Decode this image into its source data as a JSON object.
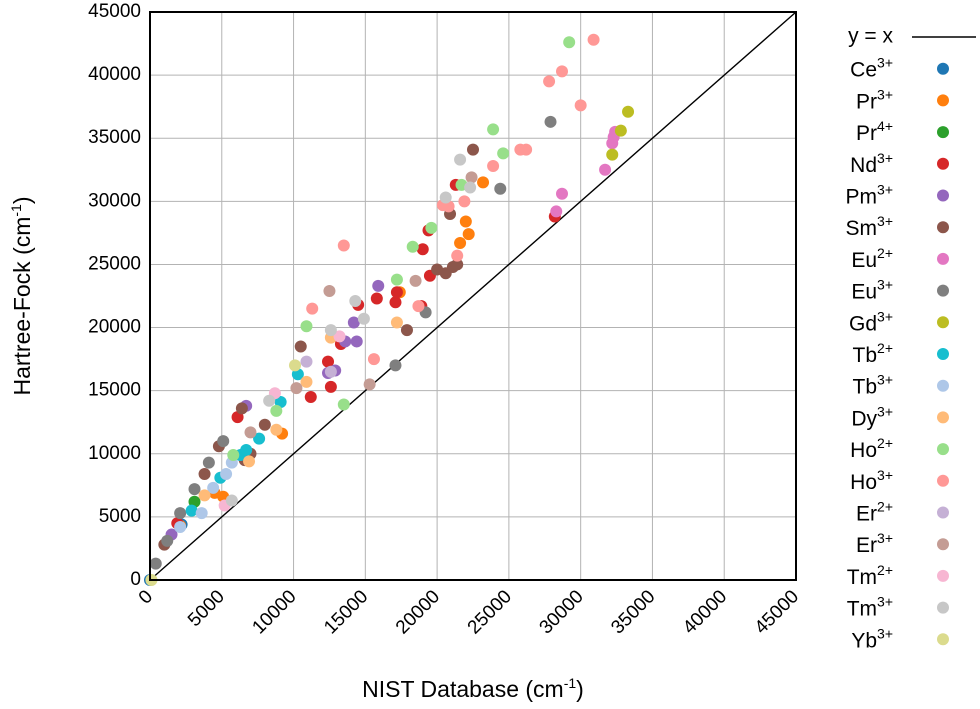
{
  "chart_data": {
    "type": "scatter",
    "xlabel": {
      "base": "NIST Database (cm",
      "sup": "-1",
      "close": ")"
    },
    "ylabel": {
      "base": "Hartree-Fock (cm",
      "sup": "-1",
      "close": ")"
    },
    "xlim": [
      0,
      45000
    ],
    "ylim": [
      0,
      45000
    ],
    "x_ticks": [
      0,
      5000,
      10000,
      15000,
      20000,
      25000,
      30000,
      35000,
      40000,
      45000
    ],
    "y_ticks": [
      0,
      5000,
      10000,
      15000,
      20000,
      25000,
      30000,
      35000,
      40000,
      45000
    ],
    "grid": true,
    "legend_position": "right",
    "reference_line": {
      "label": "y = x",
      "color": "#000000"
    },
    "series": [
      {
        "name": "Ce",
        "charge": "3+",
        "color": "#1f77b4",
        "points": [
          [
            0,
            0
          ],
          [
            2200,
            4400
          ]
        ]
      },
      {
        "name": "Pr",
        "charge": "3+",
        "color": "#ff7f0e",
        "points": [
          [
            2100,
            4300
          ],
          [
            4500,
            6900
          ],
          [
            5100,
            6600
          ],
          [
            9200,
            11600
          ],
          [
            17400,
            22800
          ],
          [
            21600,
            26700
          ],
          [
            22000,
            28400
          ],
          [
            22200,
            27400
          ],
          [
            23200,
            31500
          ]
        ]
      },
      {
        "name": "Pr",
        "charge": "4+",
        "color": "#2ca02c",
        "points": [
          [
            3100,
            6200
          ]
        ]
      },
      {
        "name": "Nd",
        "charge": "3+",
        "color": "#d62728",
        "points": [
          [
            1900,
            4500
          ],
          [
            6100,
            12900
          ],
          [
            11200,
            14500
          ],
          [
            12400,
            17300
          ],
          [
            12600,
            15300
          ],
          [
            13300,
            18700
          ],
          [
            14500,
            21800
          ],
          [
            15800,
            22300
          ],
          [
            17100,
            22000
          ],
          [
            17200,
            22800
          ],
          [
            18900,
            21700
          ],
          [
            19500,
            24100
          ],
          [
            19400,
            27700
          ],
          [
            19000,
            26200
          ],
          [
            21300,
            31300
          ],
          [
            28200,
            28800
          ]
        ]
      },
      {
        "name": "Pm",
        "charge": "3+",
        "color": "#9467bd",
        "points": [
          [
            1500,
            3600
          ],
          [
            6700,
            13800
          ],
          [
            12400,
            16400
          ],
          [
            12900,
            16600
          ],
          [
            13600,
            18900
          ],
          [
            14400,
            18900
          ],
          [
            14200,
            20400
          ],
          [
            15900,
            23300
          ]
        ]
      },
      {
        "name": "Sm",
        "charge": "3+",
        "color": "#8c564b",
        "points": [
          [
            1000,
            2800
          ],
          [
            3800,
            8400
          ],
          [
            4800,
            10600
          ],
          [
            6600,
            9500
          ],
          [
            7000,
            10000
          ],
          [
            6400,
            13600
          ],
          [
            8000,
            12300
          ],
          [
            10500,
            18500
          ],
          [
            17900,
            19800
          ],
          [
            20000,
            24600
          ],
          [
            20600,
            24300
          ],
          [
            21100,
            24800
          ],
          [
            21400,
            25000
          ],
          [
            20900,
            29000
          ],
          [
            22500,
            34100
          ]
        ]
      },
      {
        "name": "Eu",
        "charge": "2+",
        "color": "#e377c2",
        "points": [
          [
            28300,
            29200
          ],
          [
            28700,
            30600
          ],
          [
            31700,
            32500
          ],
          [
            32200,
            34600
          ],
          [
            32300,
            35100
          ],
          [
            32400,
            35500
          ]
        ]
      },
      {
        "name": "Eu",
        "charge": "3+",
        "color": "#7f7f7f",
        "points": [
          [
            400,
            1300
          ],
          [
            1200,
            3100
          ],
          [
            2100,
            5300
          ],
          [
            3100,
            7200
          ],
          [
            4100,
            9300
          ],
          [
            5100,
            11000
          ],
          [
            17100,
            17000
          ],
          [
            19200,
            21200
          ],
          [
            24400,
            31000
          ],
          [
            27900,
            36300
          ]
        ]
      },
      {
        "name": "Gd",
        "charge": "3+",
        "color": "#bcbd22",
        "points": [
          [
            32200,
            33700
          ],
          [
            32800,
            35600
          ],
          [
            33300,
            37100
          ]
        ]
      },
      {
        "name": "Tb",
        "charge": "2+",
        "color": "#17becf",
        "points": [
          [
            2900,
            5500
          ],
          [
            4900,
            8100
          ],
          [
            6300,
            9900
          ],
          [
            6700,
            10300
          ],
          [
            7600,
            11200
          ],
          [
            9100,
            14100
          ],
          [
            10300,
            16300
          ]
        ]
      },
      {
        "name": "Tb",
        "charge": "3+",
        "color": "#aec7e8",
        "points": [
          [
            2100,
            4200
          ],
          [
            3600,
            5300
          ],
          [
            4400,
            7300
          ],
          [
            5300,
            8400
          ],
          [
            5700,
            9300
          ]
        ]
      },
      {
        "name": "Dy",
        "charge": "3+",
        "color": "#ffbb78",
        "points": [
          [
            3800,
            6700
          ],
          [
            6900,
            9400
          ],
          [
            8800,
            11900
          ],
          [
            10900,
            15700
          ],
          [
            12600,
            19200
          ],
          [
            17200,
            20400
          ]
        ]
      },
      {
        "name": "Ho",
        "charge": "2+",
        "color": "#98df8a",
        "points": [
          [
            5800,
            9900
          ],
          [
            8800,
            13400
          ],
          [
            10900,
            20100
          ],
          [
            13500,
            13900
          ],
          [
            17200,
            23800
          ],
          [
            18300,
            26400
          ],
          [
            19600,
            27900
          ],
          [
            21700,
            31300
          ],
          [
            23900,
            35700
          ],
          [
            24600,
            33800
          ],
          [
            29200,
            42600
          ]
        ]
      },
      {
        "name": "Ho",
        "charge": "3+",
        "color": "#ff9896",
        "points": [
          [
            11300,
            21500
          ],
          [
            13500,
            26500
          ],
          [
            15600,
            17500
          ],
          [
            18700,
            21700
          ],
          [
            20400,
            29700
          ],
          [
            20800,
            29600
          ],
          [
            21400,
            25700
          ],
          [
            21900,
            30000
          ],
          [
            23900,
            32800
          ],
          [
            25800,
            34100
          ],
          [
            26200,
            34100
          ],
          [
            27800,
            39500
          ],
          [
            28700,
            40300
          ],
          [
            30000,
            37600
          ],
          [
            30900,
            42800
          ]
        ]
      },
      {
        "name": "Er",
        "charge": "2+",
        "color": "#c5b0d5",
        "points": [
          [
            10900,
            17300
          ],
          [
            12600,
            16500
          ]
        ]
      },
      {
        "name": "Er",
        "charge": "3+",
        "color": "#c49c94",
        "points": [
          [
            7000,
            11700
          ],
          [
            10200,
            15200
          ],
          [
            12500,
            22900
          ],
          [
            15300,
            15500
          ],
          [
            18500,
            23700
          ],
          [
            22400,
            31900
          ]
        ]
      },
      {
        "name": "Tm",
        "charge": "2+",
        "color": "#f7b6d2",
        "points": [
          [
            5200,
            5900
          ],
          [
            8700,
            14800
          ],
          [
            13200,
            19300
          ]
        ]
      },
      {
        "name": "Tm",
        "charge": "3+",
        "color": "#c7c7c7",
        "points": [
          [
            5700,
            6300
          ],
          [
            8300,
            14200
          ],
          [
            12600,
            19800
          ],
          [
            14300,
            22100
          ],
          [
            14900,
            20700
          ],
          [
            20600,
            30300
          ],
          [
            21600,
            33300
          ],
          [
            22300,
            31100
          ]
        ]
      },
      {
        "name": "Yb",
        "charge": "3+",
        "color": "#dbdb8d",
        "points": [
          [
            100,
            0
          ],
          [
            10100,
            17000
          ]
        ]
      }
    ]
  }
}
